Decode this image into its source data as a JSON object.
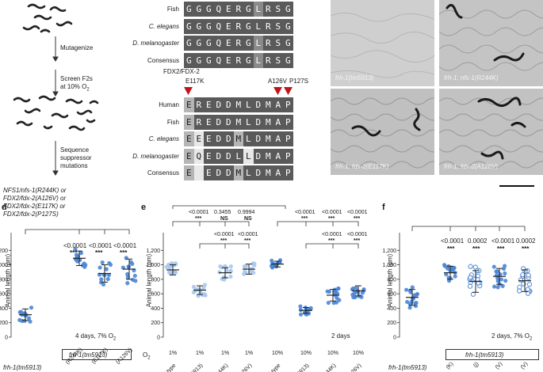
{
  "panel_a": {
    "steps": [
      "Mutagenize",
      "Screen F2s",
      "at 10% O",
      "Sequence",
      "suppressor",
      "mutations"
    ],
    "result_lines": [
      "NFS1/nfs-1(R244K) or",
      "FDX2/fdx-2(A126V) or",
      "FDX2/fdx-2(E117K) or",
      "FDX2/fdx-2(P127S)"
    ]
  },
  "panel_b_top": {
    "rows": [
      {
        "label": "Fish",
        "seq": "GGGQERGLRSG",
        "shade": "00000001000"
      },
      {
        "label": "C. elegans",
        "seq": "GGGQERGLRSG",
        "shade": "00000000000"
      },
      {
        "label": "D. melanogaster",
        "seq": "GGGQERGLRSG",
        "shade": "00000001000"
      },
      {
        "label": "Consensus",
        "seq": "GGGQERGLRSG",
        "shade": "00000001000"
      }
    ]
  },
  "panel_b_bottom": {
    "title": "FDX2/FDX-2",
    "mut_e117k": "E117K",
    "mut_a126v": "A126V",
    "mut_p127s": "P127S",
    "rows": [
      {
        "label": "Human",
        "seq": "EREDDMLDMAP",
        "shade": "20000000000"
      },
      {
        "label": "Fish",
        "seq": "EREDDMLDMAP",
        "shade": "20000000000"
      },
      {
        "label": "C. elegans",
        "seq": "EEEDDMLDMAP",
        "shade": "23000200000"
      },
      {
        "label": "D. melanogaster",
        "seq": "EQEDDLLDMAP",
        "shade": "23000030000"
      },
      {
        "label": "Consensus",
        "seq": "E EDDMLDMAP",
        "shade": "23000200000"
      }
    ]
  },
  "panel_c": {
    "labels": [
      "frh-1(tm5913)",
      "frh-1; nfs-1(R244K)",
      "frh-1; fdx-2(E117K)",
      "frh-1; fdx-2(A126V)"
    ]
  },
  "panel_d": {
    "letter": "d",
    "ylabel": "Animal length (μm)",
    "yticks": [
      "0",
      "200",
      "400",
      "600",
      "800",
      "1,000",
      "1,200"
    ],
    "pvals": [
      "<0.0001",
      "<0.0001",
      "<0.0001"
    ],
    "stars": [
      "***",
      "***",
      "***"
    ],
    "condition": "4 days, 7% O",
    "bracket_label": "frh-1(tm5913)",
    "xlabels": [
      "frh-1(tm5913)",
      "(R244K)",
      "(E117K)",
      "(A126V)"
    ],
    "chart_data": {
      "type": "scatter",
      "ylim": [
        0,
        1400
      ],
      "groups": [
        {
          "mean": 310,
          "sd": 80
        },
        {
          "mean": 1090,
          "sd": 100
        },
        {
          "mean": 880,
          "sd": 120
        },
        {
          "mean": 940,
          "sd": 140
        }
      ]
    }
  },
  "panel_e": {
    "letter": "e",
    "ylabel": "Animal length (μm)",
    "yticks": [
      "0",
      "200",
      "400",
      "600",
      "800",
      "1,000",
      "1,200"
    ],
    "o2_label": "O",
    "o2_values": [
      "1%",
      "1%",
      "1%",
      "1%",
      "10%",
      "10%",
      "10%",
      "10%"
    ],
    "condition": "2 days",
    "pvals_top": [
      "<0.0001",
      "0.3455",
      "0.9994",
      "<0.0001",
      "<0.0001",
      "<0.0001"
    ],
    "sig_top": [
      "***",
      "NS",
      "NS",
      "***",
      "***",
      "***"
    ],
    "pvals_mid": [
      "<0.0001",
      "<0.0001",
      "<0.0001",
      "<0.0001"
    ],
    "sig_mid": [
      "***",
      "***",
      "***",
      "***"
    ],
    "xlabels": [
      "Wild type",
      "(tm5913)",
      "(R244K)",
      "(A126V)",
      "Wild type",
      "(tm5913)",
      "(R244K)",
      "(A126V)"
    ],
    "chart_data": {
      "type": "scatter",
      "ylim": [
        0,
        1400
      ],
      "groups": [
        {
          "mean": 930,
          "sd": 70
        },
        {
          "mean": 650,
          "sd": 60
        },
        {
          "mean": 890,
          "sd": 70
        },
        {
          "mean": 940,
          "sd": 70
        },
        {
          "mean": 1010,
          "sd": 40
        },
        {
          "mean": 370,
          "sd": 40
        },
        {
          "mean": 580,
          "sd": 80
        },
        {
          "mean": 640,
          "sd": 70
        }
      ]
    }
  },
  "panel_f": {
    "letter": "f",
    "ylabel": "Animal length (μm)",
    "yticks": [
      "0",
      "200",
      "400",
      "600",
      "800",
      "1,000",
      "1,200"
    ],
    "pvals": [
      "<0.0001",
      "0.0002",
      "<0.0001",
      "0.0002"
    ],
    "stars": [
      "***",
      "***",
      "***",
      "***"
    ],
    "condition": "2 days, 7% O",
    "bracket_label": "frh-1(tm5913)",
    "xlabels": [
      "frh-1(tm5913)",
      "(K)",
      "(j)",
      "(V)",
      "(V)"
    ],
    "chart_data": {
      "type": "scatter",
      "ylim": [
        0,
        1400
      ],
      "groups": [
        {
          "mean": 550,
          "sd": 110
        },
        {
          "mean": 890,
          "sd": 90
        },
        {
          "mean": 770,
          "sd": 150
        },
        {
          "mean": 840,
          "sd": 110
        },
        {
          "mean": 780,
          "sd": 150
        }
      ]
    }
  },
  "scale_bar_color": "#111111"
}
